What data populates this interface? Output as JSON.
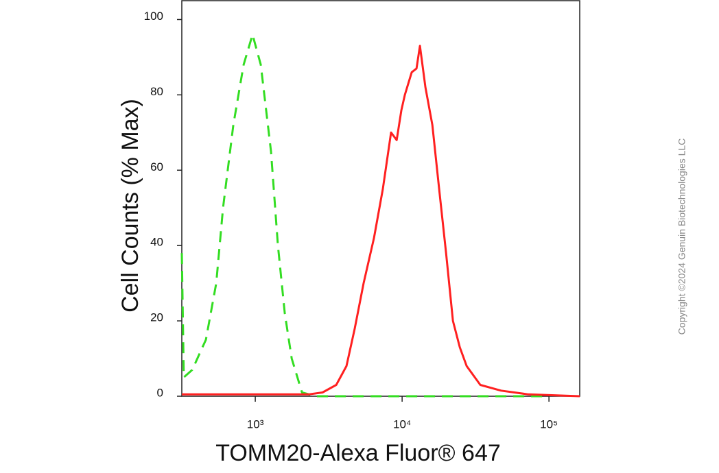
{
  "chart_data": {
    "type": "line",
    "x_label": "TOMM20-Alexa Fluor® 647",
    "y_label": "Cell Counts (% Max)",
    "watermark": "Copyright ©2024 Genuin Biotechnologies LLC",
    "x_scale": "log",
    "xlim": [
      316,
      162000
    ],
    "xticks": [
      {
        "value": 1000,
        "label": "10³"
      },
      {
        "value": 10000,
        "label": "10⁴"
      },
      {
        "value": 100000,
        "label": "10⁵"
      }
    ],
    "ylim": [
      0,
      105
    ],
    "yticks": [
      0,
      20,
      40,
      60,
      80,
      100
    ],
    "series": [
      {
        "color": "#33dd22",
        "line_style": "dashed",
        "x": [
          316,
          326,
          372,
          461,
          542,
          603,
          709,
          833,
          958,
          1090,
          1280,
          1426,
          1588,
          1770,
          2080,
          2575,
          100000
        ],
        "values": [
          38,
          5,
          7,
          15,
          30,
          50,
          72,
          88,
          96,
          88,
          65,
          40,
          22,
          10,
          1,
          0,
          0
        ]
      },
      {
        "color": "#ff2020",
        "line_style": "solid",
        "x": [
          316,
          2310,
          2870,
          3560,
          4180,
          4760,
          5470,
          6430,
          7390,
          8410,
          9180,
          9890,
          10440,
          11620,
          12530,
          13220,
          14410,
          16070,
          17870,
          19920,
          22190,
          24710,
          27500,
          34100,
          47100,
          72400,
          162000
        ],
        "values": [
          0.5,
          0.5,
          1,
          3,
          8,
          18,
          30,
          42,
          55,
          70,
          68,
          76,
          80,
          86,
          87,
          93,
          82,
          72,
          55,
          38,
          20,
          13,
          8,
          3,
          1.5,
          0.5,
          0
        ]
      }
    ]
  }
}
